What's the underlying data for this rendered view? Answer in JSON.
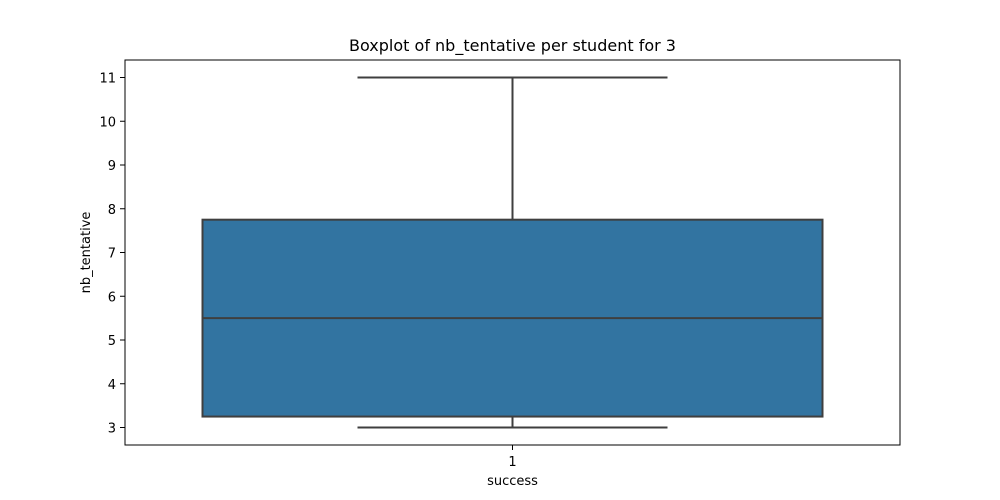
{
  "chart_data": {
    "type": "box",
    "title": "Boxplot of nb_tentative per student for 3",
    "xlabel": "success",
    "ylabel": "nb_tentative",
    "categories": [
      "1"
    ],
    "ylim": [
      2.6,
      11.4
    ],
    "yticks": [
      3,
      4,
      5,
      6,
      7,
      8,
      9,
      10,
      11
    ],
    "grid": false,
    "series": [
      {
        "category": "1",
        "min": 3,
        "q1": 3.25,
        "median": 5.5,
        "q3": 7.75,
        "max": 11
      }
    ],
    "colors": {
      "box_fill": "#3274a1",
      "line": "#3f3f3f",
      "axes": "#000000"
    }
  }
}
